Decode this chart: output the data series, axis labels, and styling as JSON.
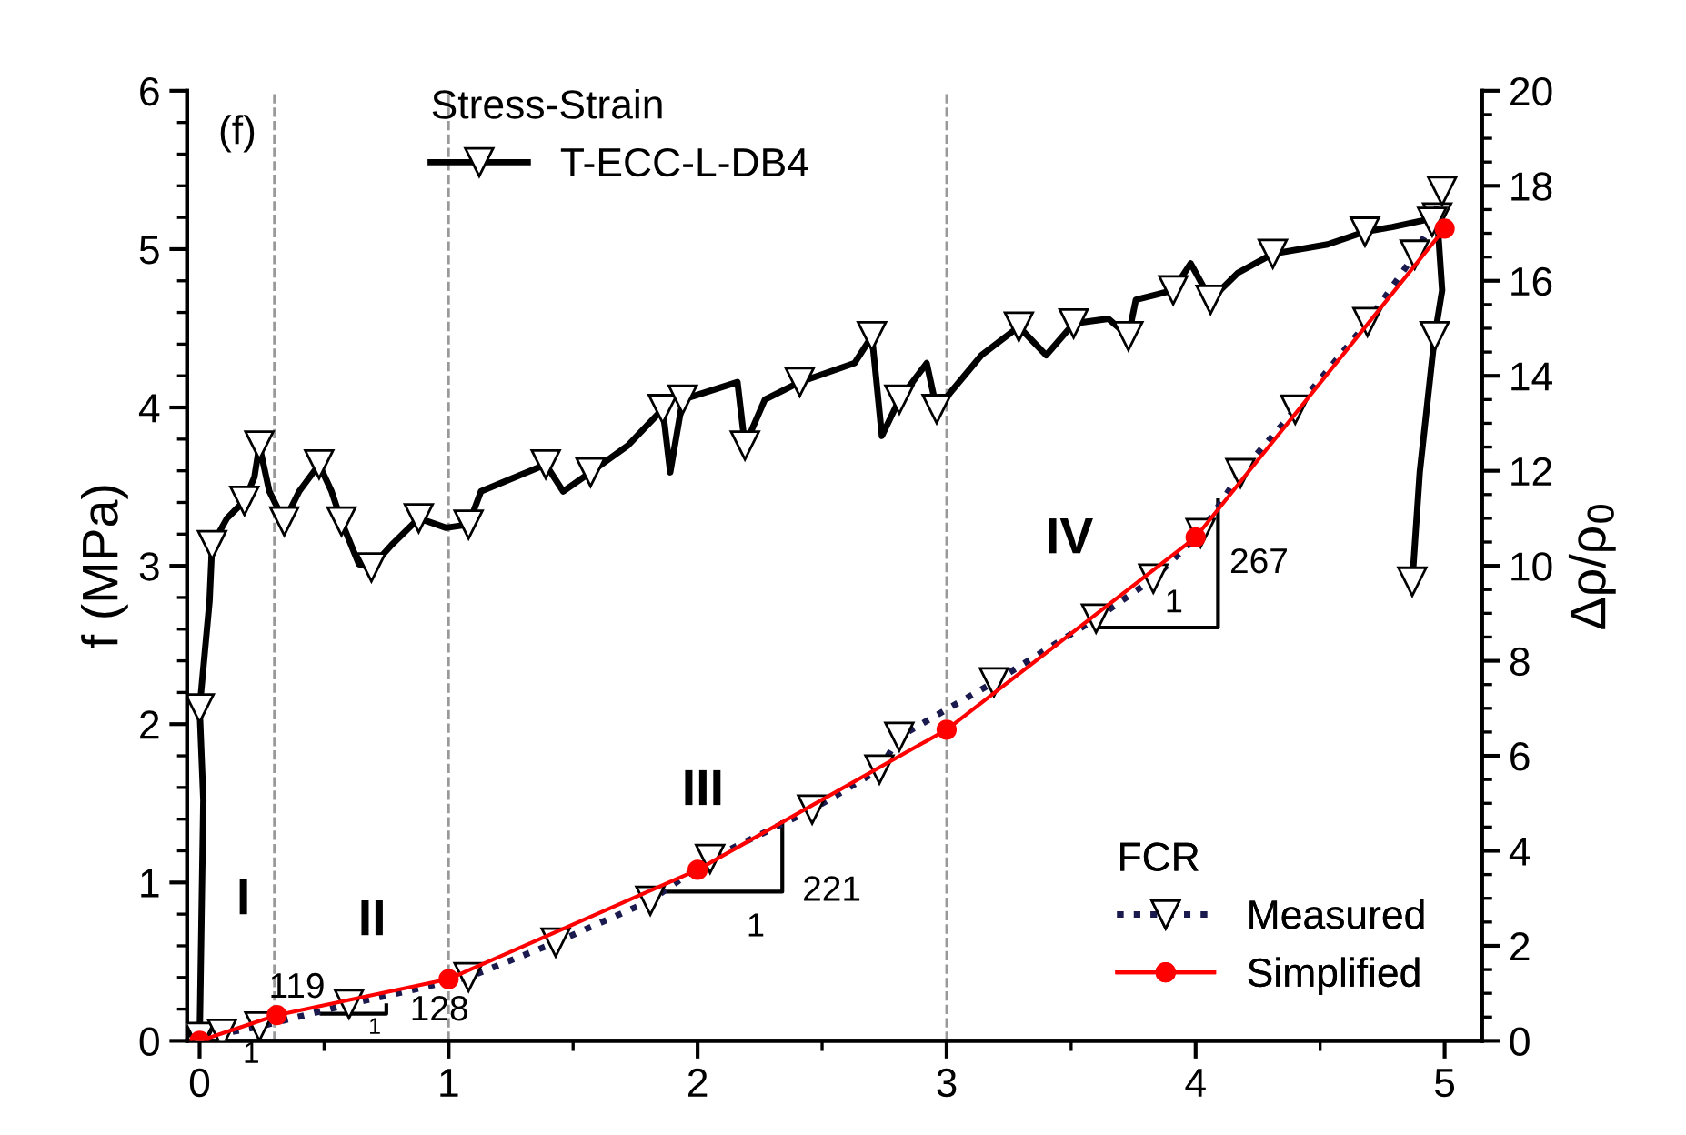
{
  "chart_data": {
    "type": "line",
    "ylabel": "f (MPa)",
    "y2label": "Δρ/ρ$_{0}$",
    "legend_title": [
      "Stress-Strain",
      "FCR"
    ],
    "legend": [
      "top left",
      "bottom right"
    ],
    "xlim": [
      -0.05,
      5.15
    ],
    "ylim": [
      0,
      6
    ],
    "y2lim": [
      0,
      20
    ],
    "xticks": [
      0,
      {
        "value": 0.5,
        "label": null
      },
      1,
      {
        "value": 1.5,
        "label": null
      },
      2,
      {
        "value": 2.5,
        "label": null
      },
      3,
      {
        "value": 3.5,
        "label": null
      },
      4,
      {
        "value": 4.5,
        "label": null
      },
      5
    ],
    "yticks": [
      0,
      {
        "value": 0.2,
        "label": null
      },
      {
        "value": 0.4,
        "label": null
      },
      {
        "value": 0.6,
        "label": null
      },
      {
        "value": 0.8,
        "label": null
      },
      1,
      {
        "value": 1.2,
        "label": null
      },
      {
        "value": 1.4,
        "label": null
      },
      {
        "value": 1.6,
        "label": null
      },
      {
        "value": 1.8,
        "label": null
      },
      2,
      {
        "value": 2.2,
        "label": null
      },
      {
        "value": 2.4,
        "label": null
      },
      {
        "value": 2.6,
        "label": null
      },
      {
        "value": 2.8,
        "label": null
      },
      3,
      {
        "value": 3.2,
        "label": null
      },
      {
        "value": 3.4,
        "label": null
      },
      {
        "value": 3.6,
        "label": null
      },
      {
        "value": 3.8,
        "label": null
      },
      4,
      {
        "value": 4.2,
        "label": null
      },
      {
        "value": 4.4,
        "label": null
      },
      {
        "value": 4.6,
        "label": null
      },
      {
        "value": 4.8,
        "label": null
      },
      5,
      {
        "value": 5.2,
        "label": null
      },
      {
        "value": 5.4,
        "label": null
      },
      {
        "value": 5.6,
        "label": null
      },
      {
        "value": 5.8,
        "label": null
      },
      6
    ],
    "y2ticks": [
      0,
      {
        "value": 0.5,
        "label": null
      },
      {
        "value": 1,
        "label": null
      },
      {
        "value": 1.5,
        "label": null
      },
      2,
      {
        "value": 2.5,
        "label": null
      },
      {
        "value": 3,
        "label": null
      },
      {
        "value": 3.5,
        "label": null
      },
      4,
      {
        "value": 4.5,
        "label": null
      },
      {
        "value": 5,
        "label": null
      },
      {
        "value": 5.5,
        "label": null
      },
      6,
      {
        "value": 6.5,
        "label": null
      },
      {
        "value": 7,
        "label": null
      },
      {
        "value": 7.5,
        "label": null
      },
      8,
      {
        "value": 8.5,
        "label": null
      },
      {
        "value": 9,
        "label": null
      },
      {
        "value": 9.5,
        "label": null
      },
      10,
      {
        "value": 10.5,
        "label": null
      },
      {
        "value": 11,
        "label": null
      },
      {
        "value": 11.5,
        "label": null
      },
      12,
      {
        "value": 12.5,
        "label": null
      },
      {
        "value": 13,
        "label": null
      },
      {
        "value": 13.5,
        "label": null
      },
      14,
      {
        "value": 14.5,
        "label": null
      },
      {
        "value": 15,
        "label": null
      },
      {
        "value": 15.5,
        "label": null
      },
      16,
      {
        "value": 16.5,
        "label": null
      },
      {
        "value": 17,
        "label": null
      },
      {
        "value": 17.5,
        "label": null
      },
      18,
      {
        "value": 18.5,
        "label": null
      },
      {
        "value": 19,
        "label": null
      },
      {
        "value": 19.5,
        "label": null
      },
      20
    ],
    "grid": false,
    "series": [
      {
        "name": "T-ECC-L-DB4",
        "color": "#000000",
        "axis": "y",
        "marker": "triangle",
        "line_style": "solid",
        "x": [
          0,
          0.015,
          0,
          0.04,
          0.05,
          0.11,
          0.18,
          0.22,
          0.24,
          0.28,
          0.34,
          0.4,
          0.48,
          0.53,
          0.57,
          0.64,
          0.69,
          0.77,
          0.88,
          0.99,
          1.08,
          1.13,
          1.39,
          1.46,
          1.57,
          1.72,
          1.86,
          1.89,
          1.94,
          2.16,
          2.19,
          2.27,
          2.41,
          2.63,
          2.7,
          2.74,
          2.81,
          2.92,
          2.96,
          3.14,
          3.29,
          3.4,
          3.51,
          3.65,
          3.73,
          3.76,
          3.91,
          3.98,
          4.06,
          4.17,
          4.31,
          4.53,
          4.68,
          4.79,
          4.97,
          4.99,
          4.96,
          4.9,
          4.87
        ],
        "values": [
          0,
          1.52,
          2.1,
          2.78,
          3.13,
          3.3,
          3.41,
          3.56,
          3.76,
          3.47,
          3.28,
          3.47,
          3.64,
          3.47,
          3.28,
          3.01,
          2.99,
          3.13,
          3.3,
          3.24,
          3.26,
          3.47,
          3.64,
          3.47,
          3.59,
          3.76,
          3.99,
          3.59,
          4.05,
          4.16,
          3.76,
          4.05,
          4.16,
          4.28,
          4.45,
          3.82,
          4.05,
          4.28,
          3.99,
          4.33,
          4.51,
          4.33,
          4.53,
          4.56,
          4.45,
          4.68,
          4.74,
          4.91,
          4.68,
          4.85,
          4.97,
          5.03,
          5.11,
          5.14,
          5.2,
          4.74,
          4.45,
          3.59,
          2.9
        ]
      },
      {
        "name": "Measured",
        "color": "#1a1a4e",
        "axis": "y2",
        "marker": "triangle",
        "line_style": "dotted",
        "x": [
          0,
          0.09,
          0.24,
          0.6,
          1.08,
          1.43,
          1.81,
          2.05,
          2.46,
          2.73,
          2.81,
          3.19,
          3.6,
          3.83,
          4.02,
          4.18,
          4.4,
          4.69,
          4.88,
          4.95,
          4.99
        ],
        "values": [
          0.08,
          0.15,
          0.3,
          0.77,
          1.34,
          2.07,
          2.95,
          3.83,
          4.87,
          5.71,
          6.4,
          7.55,
          8.89,
          9.73,
          10.69,
          11.95,
          13.29,
          15.13,
          16.55,
          17.24,
          17.89
        ]
      },
      {
        "name": "Simplified",
        "color": "#ff0000",
        "axis": "y2",
        "marker": "circle",
        "line_style": "solid",
        "x": [
          0,
          0.31,
          1.0,
          2.0,
          3.0,
          4.0,
          5.0
        ],
        "values": [
          0,
          0.54,
          1.3,
          3.6,
          6.55,
          10.6,
          17.1
        ]
      },
      {
        "color": "#000000",
        "axis": "y2",
        "marker": "none",
        "line_style": "solid",
        "x": [
          0.49,
          0.75,
          0.75
        ],
        "values": [
          0.57,
          0.57,
          0.75
        ]
      },
      {
        "color": "#000000",
        "axis": "y2",
        "marker": "none",
        "line_style": "solid",
        "x": [
          1.86,
          2.34,
          2.34
        ],
        "values": [
          3.14,
          3.14,
          4.6
        ]
      },
      {
        "color": "#000000",
        "axis": "y2",
        "marker": "none",
        "line_style": "solid",
        "x": [
          3.6,
          4.09,
          4.09
        ],
        "values": [
          8.7,
          8.7,
          11.38
        ]
      }
    ],
    "ref_lines": [
      {
        "axis": "x",
        "value": 0.3,
        "color": "#999999",
        "line_style": "dashed"
      },
      {
        "axis": "x",
        "value": 1.0,
        "color": "#999999",
        "line_style": "dashed"
      },
      {
        "axis": "x",
        "value": 3.0,
        "color": "#999999",
        "line_style": "dashed"
      }
    ],
    "annotations": [
      "(f)",
      "I",
      "II",
      "III",
      "IV",
      "1",
      "119",
      "128",
      "1",
      "221",
      "1",
      "267",
      "1"
    ]
  }
}
